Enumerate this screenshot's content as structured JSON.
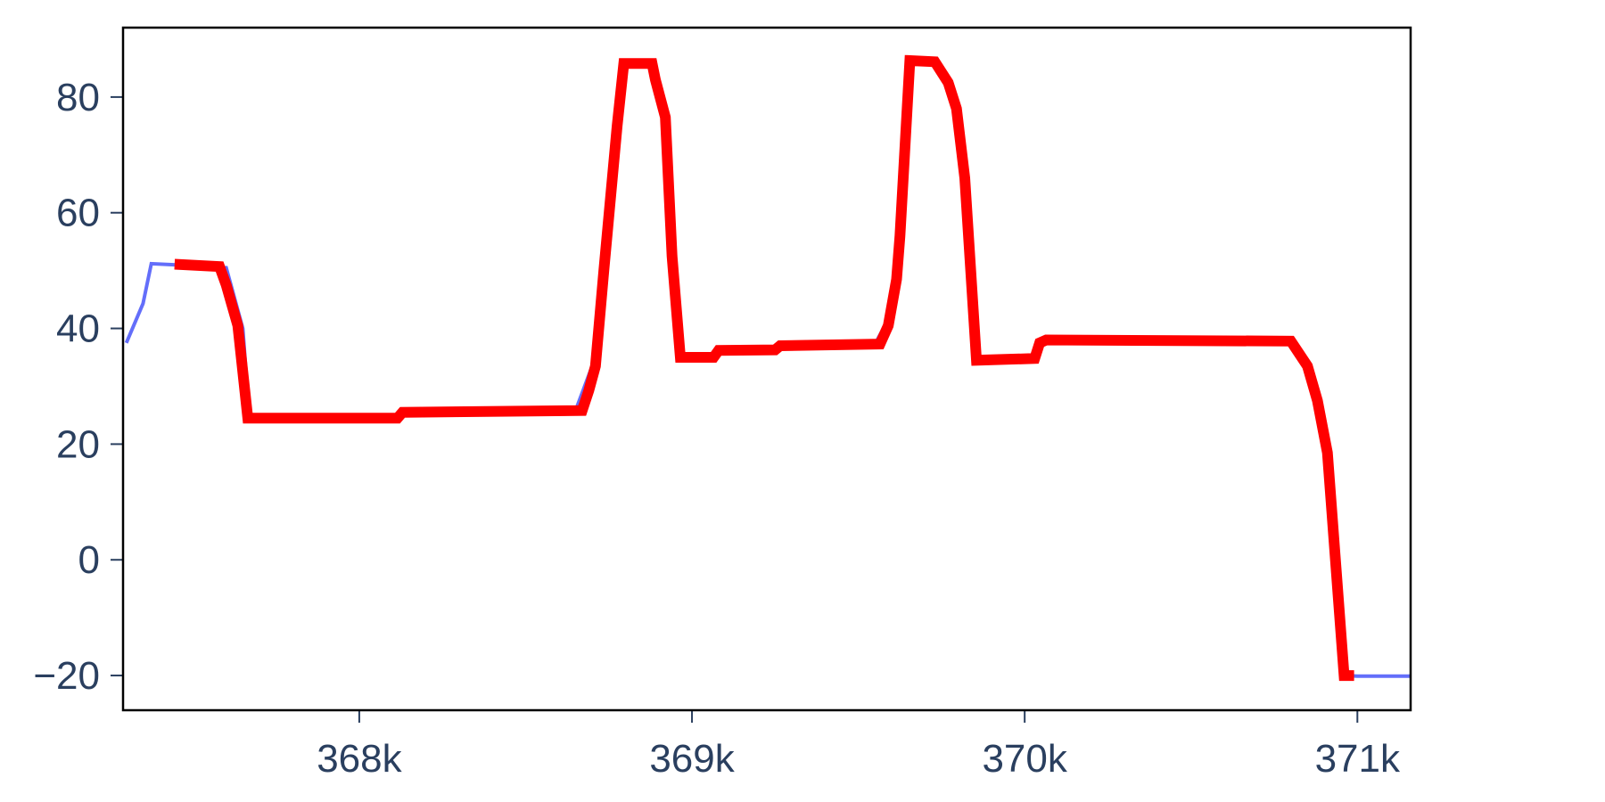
{
  "chart_data": {
    "type": "line",
    "title": "",
    "xlabel": "",
    "ylabel": "",
    "xlim": [
      367290,
      371160
    ],
    "ylim": [
      -26,
      92
    ],
    "grid": false,
    "x_ticks": [
      {
        "value": 368000,
        "label": "368k"
      },
      {
        "value": 369000,
        "label": "369k"
      },
      {
        "value": 370000,
        "label": "370k"
      },
      {
        "value": 371000,
        "label": "371k"
      }
    ],
    "y_ticks": [
      {
        "value": -20,
        "label": "−20"
      },
      {
        "value": 0,
        "label": "0"
      },
      {
        "value": 20,
        "label": "20"
      },
      {
        "value": 40,
        "label": "40"
      },
      {
        "value": 60,
        "label": "60"
      },
      {
        "value": 80,
        "label": "80"
      }
    ],
    "series": [
      {
        "color": "#636efa",
        "values": [
          [
            367300,
            37.5
          ],
          [
            367350,
            44.3
          ],
          [
            367375,
            51.2
          ],
          [
            367450,
            51.0
          ],
          [
            367600,
            50.5
          ],
          [
            367650,
            40
          ],
          [
            367670,
            24.5
          ],
          [
            368100,
            24.5
          ],
          [
            368120,
            25.5
          ],
          [
            368650,
            25.8
          ],
          [
            368700,
            33.5
          ],
          [
            368740,
            50
          ],
          [
            368780,
            75
          ],
          [
            368800,
            85.8
          ],
          [
            368880,
            85.8
          ],
          [
            368920,
            76.5
          ],
          [
            368950,
            51
          ],
          [
            368975,
            35
          ],
          [
            369060,
            35
          ],
          [
            369070,
            36
          ],
          [
            369250,
            36.2
          ],
          [
            369270,
            37
          ],
          [
            369550,
            37.3
          ],
          [
            369580,
            40.5
          ],
          [
            369610,
            48.5
          ],
          [
            369630,
            56
          ],
          [
            369660,
            86.3
          ],
          [
            369740,
            86
          ],
          [
            369770,
            82.5
          ],
          [
            369800,
            78
          ],
          [
            369830,
            66
          ],
          [
            369860,
            35
          ],
          [
            370030,
            34.8
          ],
          [
            370050,
            37.5
          ],
          [
            370065,
            38
          ],
          [
            370800,
            37.8
          ],
          [
            370850,
            33.5
          ],
          [
            370890,
            27.5
          ],
          [
            370920,
            18.5
          ],
          [
            370950,
            -10
          ],
          [
            370960,
            -20
          ],
          [
            371000,
            -20.1
          ],
          [
            371160,
            -20.1
          ]
        ]
      },
      {
        "color": "#ff0000",
        "values": [
          [
            367445,
            51.1
          ],
          [
            367580,
            50.7
          ],
          [
            367600,
            47.5
          ],
          [
            367635,
            40.5
          ],
          [
            367665,
            24.5
          ],
          [
            368115,
            24.5
          ],
          [
            368130,
            25.5
          ],
          [
            368670,
            25.8
          ],
          [
            368690,
            29.3
          ],
          [
            368710,
            33.5
          ],
          [
            368735,
            50
          ],
          [
            368775,
            75
          ],
          [
            368795,
            85.8
          ],
          [
            368880,
            85.8
          ],
          [
            368890,
            83
          ],
          [
            368920,
            76.5
          ],
          [
            368940,
            52.5
          ],
          [
            368965,
            35
          ],
          [
            369065,
            35
          ],
          [
            369080,
            36.2
          ],
          [
            369250,
            36.3
          ],
          [
            369265,
            37
          ],
          [
            369565,
            37.3
          ],
          [
            369590,
            40.5
          ],
          [
            369615,
            48.5
          ],
          [
            369625,
            56
          ],
          [
            369655,
            86.3
          ],
          [
            369730,
            86.1
          ],
          [
            369770,
            82.5
          ],
          [
            369795,
            78
          ],
          [
            369820,
            66
          ],
          [
            369855,
            34.5
          ],
          [
            370030,
            34.8
          ],
          [
            370045,
            37.5
          ],
          [
            370065,
            38
          ],
          [
            370800,
            37.8
          ],
          [
            370850,
            33.5
          ],
          [
            370880,
            27.5
          ],
          [
            370910,
            18.5
          ],
          [
            370960,
            -20
          ],
          [
            370990,
            -20
          ]
        ]
      }
    ]
  }
}
